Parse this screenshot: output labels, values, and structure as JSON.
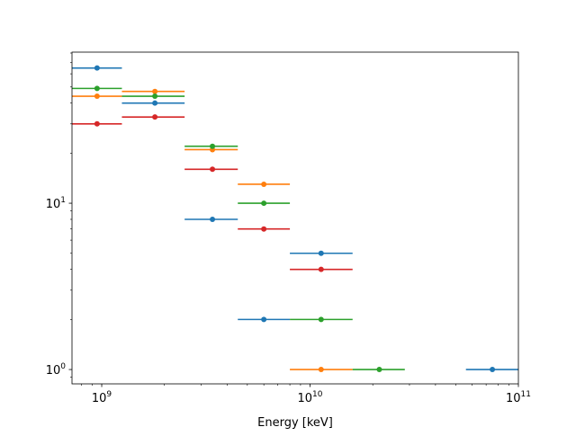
{
  "chart_data": {
    "type": "scatter",
    "title": "",
    "xlabel": "Energy [keV]",
    "ylabel": "",
    "x_scale": "log",
    "y_scale": "log",
    "xlim": [
      720000000.0,
      100000000000.0
    ],
    "ylim": [
      0.82,
      81
    ],
    "grid": false,
    "x_ticks": [
      {
        "value": 1000000000.0,
        "base": "10",
        "exp": "9"
      },
      {
        "value": 10000000000.0,
        "base": "10",
        "exp": "10"
      },
      {
        "value": 100000000000.0,
        "base": "10",
        "exp": "11"
      }
    ],
    "y_ticks": [
      {
        "value": 1,
        "base": "10",
        "exp": "0"
      },
      {
        "value": 10,
        "base": "10",
        "exp": "1"
      }
    ],
    "series": [
      {
        "color": "#1f77b4",
        "points": [
          {
            "x": 950000000.0,
            "y": 65,
            "xmin": 720000000.0,
            "xmax": 1250000000.0
          },
          {
            "x": 1800000000.0,
            "y": 40,
            "xmin": 1250000000.0,
            "xmax": 2500000000.0
          },
          {
            "x": 3400000000.0,
            "y": 8,
            "xmin": 2500000000.0,
            "xmax": 4500000000.0
          },
          {
            "x": 6000000000.0,
            "y": 2,
            "xmin": 4500000000.0,
            "xmax": 8000000000.0
          },
          {
            "x": 11300000000.0,
            "y": 5,
            "xmin": 8000000000.0,
            "xmax": 16000000000.0
          },
          {
            "x": 75000000000.0,
            "y": 1,
            "xmin": 56000000000.0,
            "xmax": 100000000000.0
          }
        ]
      },
      {
        "color": "#ff7f0e",
        "points": [
          {
            "x": 950000000.0,
            "y": 44,
            "xmin": 720000000.0,
            "xmax": 1250000000.0
          },
          {
            "x": 1800000000.0,
            "y": 47,
            "xmin": 1250000000.0,
            "xmax": 2500000000.0
          },
          {
            "x": 3400000000.0,
            "y": 21,
            "xmin": 2500000000.0,
            "xmax": 4500000000.0
          },
          {
            "x": 6000000000.0,
            "y": 13,
            "xmin": 4500000000.0,
            "xmax": 8000000000.0
          },
          {
            "x": 11300000000.0,
            "y": 1,
            "xmin": 8000000000.0,
            "xmax": 16000000000.0
          }
        ]
      },
      {
        "color": "#2ca02c",
        "points": [
          {
            "x": 950000000.0,
            "y": 49,
            "xmin": 720000000.0,
            "xmax": 1250000000.0
          },
          {
            "x": 1800000000.0,
            "y": 44,
            "xmin": 1250000000.0,
            "xmax": 2500000000.0
          },
          {
            "x": 3400000000.0,
            "y": 22,
            "xmin": 2500000000.0,
            "xmax": 4500000000.0
          },
          {
            "x": 6000000000.0,
            "y": 10,
            "xmin": 4500000000.0,
            "xmax": 8000000000.0
          },
          {
            "x": 11300000000.0,
            "y": 2,
            "xmin": 8000000000.0,
            "xmax": 16000000000.0
          },
          {
            "x": 21500000000.0,
            "y": 1,
            "xmin": 16000000000.0,
            "xmax": 28500000000.0
          }
        ]
      },
      {
        "color": "#d62728",
        "points": [
          {
            "x": 950000000.0,
            "y": 30,
            "xmin": 720000000.0,
            "xmax": 1250000000.0
          },
          {
            "x": 1800000000.0,
            "y": 33,
            "xmin": 1250000000.0,
            "xmax": 2500000000.0
          },
          {
            "x": 3400000000.0,
            "y": 16,
            "xmin": 2500000000.0,
            "xmax": 4500000000.0
          },
          {
            "x": 6000000000.0,
            "y": 7,
            "xmin": 4500000000.0,
            "xmax": 8000000000.0
          },
          {
            "x": 11300000000.0,
            "y": 4,
            "xmin": 8000000000.0,
            "xmax": 16000000000.0
          }
        ]
      }
    ]
  }
}
